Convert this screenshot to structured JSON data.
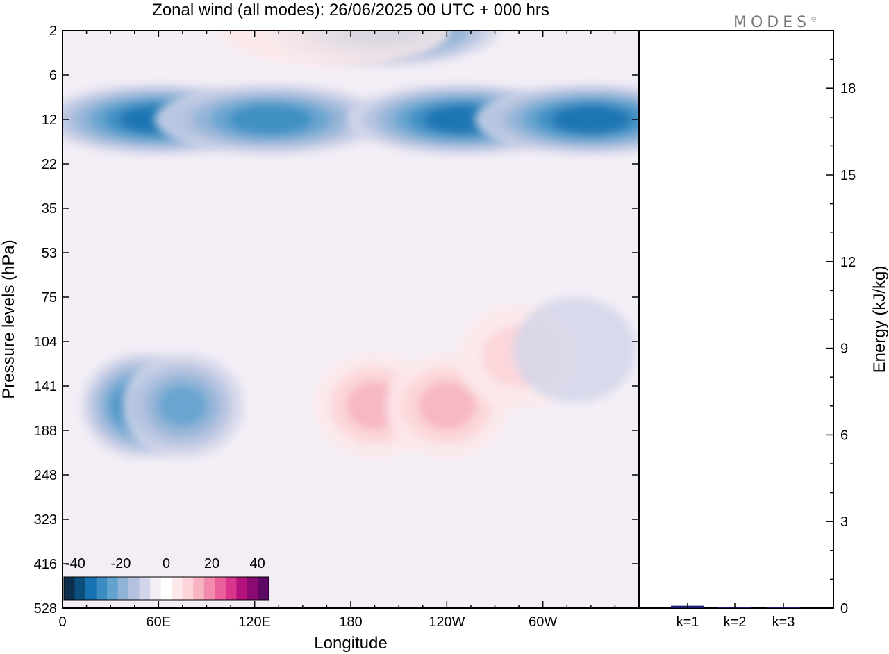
{
  "chart_data": {
    "type": "heatmap",
    "title": "Zonal wind (all modes):  26/06/2025  00 UTC  + 000 hrs",
    "xlabel": "Longitude",
    "ylabel": "Pressure levels (hPa)",
    "x_ticks": [
      "0",
      "60E",
      "120E",
      "180",
      "120W",
      "60W"
    ],
    "x_tick_degrees": [
      0,
      60,
      120,
      180,
      240,
      300
    ],
    "x_range_degrees": [
      0,
      360
    ],
    "y_ticks": [
      2,
      6,
      12,
      22,
      35,
      53,
      75,
      104,
      141,
      188,
      248,
      323,
      416,
      528
    ],
    "colorbar": {
      "tick_labels": [
        "-40",
        "-20",
        "0",
        "20",
        "40"
      ],
      "tick_values": [
        -40,
        -20,
        0,
        20,
        40
      ],
      "range": [
        -45,
        45
      ],
      "step": 5,
      "colors": [
        "#0b2f4d",
        "#0d4f7c",
        "#1672b0",
        "#3b8cc2",
        "#62a2cf",
        "#8fb3d7",
        "#b4c2df",
        "#d3d6ea",
        "#f3eef6",
        "#ffffff",
        "#fde9ea",
        "#fbd3d8",
        "#f7b3c2",
        "#f28bae",
        "#ea5f9c",
        "#d8348b",
        "#b3127d",
        "#8a0a72",
        "#5e0866"
      ]
    },
    "features": [
      {
        "lon": 60,
        "level": 12,
        "value": -32
      },
      {
        "lon": 130,
        "level": 12,
        "value": -28
      },
      {
        "lon": 250,
        "level": 12,
        "value": -30
      },
      {
        "lon": 330,
        "level": 12,
        "value": -32
      },
      {
        "lon": 200,
        "level": 2,
        "value": -30
      },
      {
        "lon": 50,
        "level": 160,
        "value": -33
      },
      {
        "lon": 75,
        "level": 160,
        "value": -20
      },
      {
        "lon": 195,
        "level": 160,
        "value": 17
      },
      {
        "lon": 240,
        "level": 160,
        "value": 15
      },
      {
        "lon": 285,
        "level": 115,
        "value": 12
      },
      {
        "lon": 170,
        "level": 2,
        "value": 5
      },
      {
        "lon": 320,
        "level": 110,
        "value": -8
      }
    ],
    "energy_panel": {
      "ylabel": "Energy (kJ/kg)",
      "y_ticks": [
        0,
        3,
        6,
        9,
        12,
        15,
        18
      ],
      "ylim": [
        0,
        20
      ],
      "categories": [
        "k=1",
        "k=2",
        "k=3"
      ],
      "values": [
        0.08,
        0.03,
        0.02
      ]
    }
  },
  "logo_text": "MODES",
  "logo_mark": "©"
}
